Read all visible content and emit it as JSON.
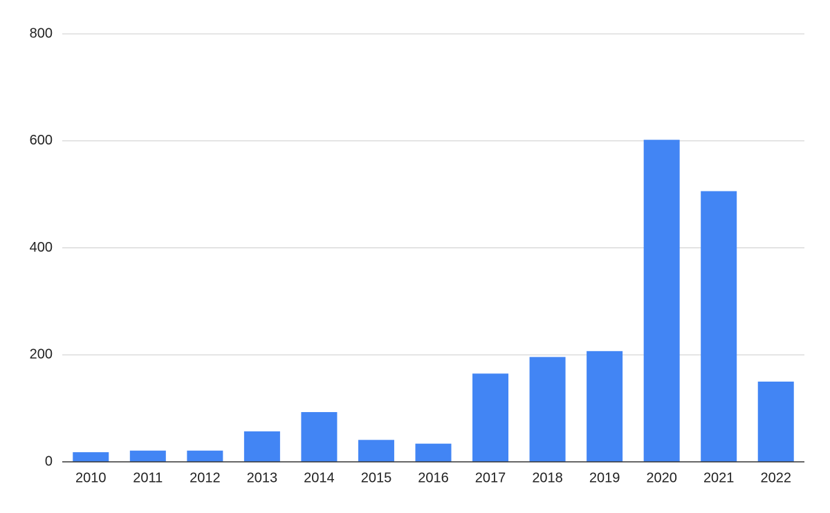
{
  "chart_data": {
    "type": "bar",
    "categories": [
      "2010",
      "2011",
      "2012",
      "2013",
      "2014",
      "2015",
      "2016",
      "2017",
      "2018",
      "2019",
      "2020",
      "2021",
      "2022"
    ],
    "values": [
      18,
      21,
      21,
      57,
      93,
      41,
      34,
      165,
      196,
      207,
      602,
      506,
      150
    ],
    "color": "#4285f4",
    "ylim": [
      0,
      800
    ],
    "yticks": [
      0,
      200,
      400,
      600,
      800
    ],
    "grid": true
  }
}
